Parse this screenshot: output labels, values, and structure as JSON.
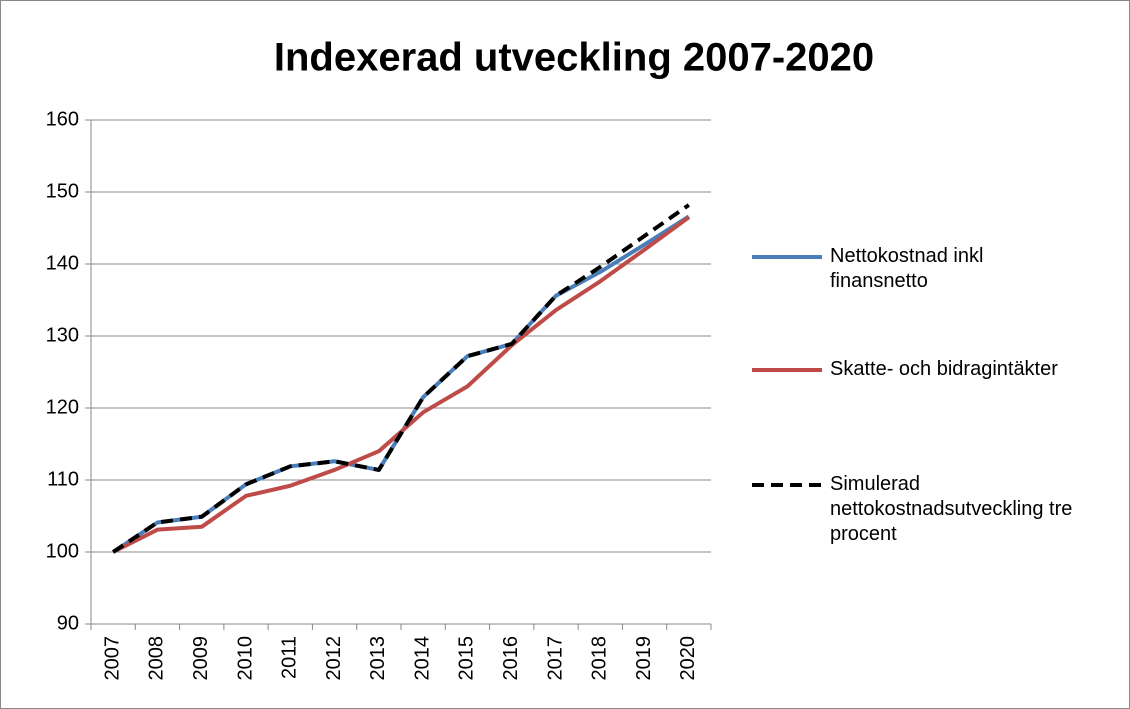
{
  "chart_data": {
    "type": "line",
    "title": "Indexerad utveckling 2007-2020",
    "categories": [
      "2007",
      "2008",
      "2009",
      "2010",
      "2011",
      "2012",
      "2013",
      "2014",
      "2015",
      "2016",
      "2017",
      "2018",
      "2019",
      "2020"
    ],
    "series": [
      {
        "name": "Nettokostnad inkl finansnetto",
        "color": "#4a7ebb",
        "dash": false,
        "values": [
          100,
          104.1,
          104.9,
          109.4,
          111.9,
          112.6,
          111.4,
          121.5,
          127.2,
          128.9,
          135.6,
          138.9,
          142.7,
          146.6
        ]
      },
      {
        "name": "Skatte- och bidragintäkter",
        "color": "#be4b48",
        "dash": false,
        "values": [
          100,
          103.1,
          103.5,
          107.8,
          109.2,
          111.4,
          114,
          119.4,
          123,
          128.7,
          133.6,
          137.6,
          142,
          146.5
        ]
      },
      {
        "name": "Simulerad nettokostnadsutveckling tre procent",
        "color": "#000000",
        "dash": true,
        "values": [
          100,
          104.1,
          104.9,
          109.4,
          111.9,
          112.6,
          111.4,
          121.5,
          127.2,
          128.9,
          135.6,
          139.6,
          143.9,
          148.2
        ]
      }
    ],
    "ylim": [
      90,
      160
    ],
    "yticks": [
      90,
      100,
      110,
      120,
      130,
      140,
      150,
      160
    ],
    "grid": true,
    "legend": "right"
  }
}
